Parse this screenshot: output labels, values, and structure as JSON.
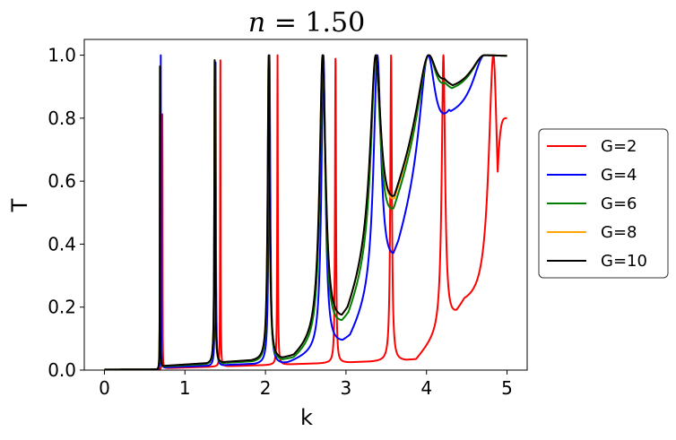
{
  "chart_data": {
    "type": "line",
    "title": "n = 1.50",
    "title_math": {
      "var": "n",
      "rest": " = 1.50"
    },
    "xlabel": "k",
    "ylabel": "T",
    "xlim": [
      -0.25,
      5.25
    ],
    "ylim": [
      0.0,
      1.05
    ],
    "xticks": [
      0,
      1,
      2,
      3,
      4,
      5
    ],
    "xtick_labels": [
      "0",
      "1",
      "2",
      "3",
      "4",
      "5"
    ],
    "yticks": [
      0.0,
      0.2,
      0.4,
      0.6,
      0.8,
      1.0
    ],
    "ytick_labels": [
      "0.0",
      "0.2",
      "0.4",
      "0.6",
      "0.8",
      "1.0"
    ],
    "grid": false,
    "legend_position": "center-right, outside axes",
    "series": [
      {
        "name": "G=2",
        "color": "#ff0000",
        "peaks": [
          {
            "k": 0.72,
            "w": 0.0016
          },
          {
            "k": 1.44,
            "w": 0.003
          },
          {
            "k": 2.15,
            "w": 0.0045
          },
          {
            "k": 2.87,
            "w": 0.007
          },
          {
            "k": 3.56,
            "w": 0.012
          },
          {
            "k": 4.21,
            "w": 0.025
          },
          {
            "k": 4.83,
            "w": 0.07
          }
        ],
        "minima": [
          {
            "k": 3.87,
            "y": 0.03
          },
          {
            "k": 4.47,
            "y": 0.2
          }
        ],
        "end": [
          5.0,
          0.8
        ]
      },
      {
        "name": "G=4",
        "color": "#0000ff",
        "peaks": [
          {
            "k": 0.7,
            "w": 0.002
          },
          {
            "k": 1.38,
            "w": 0.005
          },
          {
            "k": 2.05,
            "w": 0.012
          },
          {
            "k": 2.72,
            "w": 0.03
          },
          {
            "k": 3.39,
            "w": 0.055
          },
          {
            "k": 4.02,
            "w": 0.12
          },
          {
            "k": 4.72,
            "w": 0.18
          }
        ],
        "minima": [
          {
            "k": 2.27,
            "y": 0.02
          },
          {
            "k": 3.05,
            "y": 0.09
          },
          {
            "k": 3.65,
            "y": 0.35
          },
          {
            "k": 4.28,
            "y": 0.79
          }
        ],
        "end": [
          5.0,
          1.0
        ]
      },
      {
        "name": "G=6",
        "color": "#008000",
        "peaks": [
          {
            "k": 0.69,
            "w": 0.002
          },
          {
            "k": 1.37,
            "w": 0.006
          },
          {
            "k": 2.04,
            "w": 0.014
          },
          {
            "k": 2.71,
            "w": 0.04
          },
          {
            "k": 3.37,
            "w": 0.07
          },
          {
            "k": 4.03,
            "w": 0.14
          },
          {
            "k": 4.72,
            "w": 0.2
          }
        ],
        "minima": [
          {
            "k": 2.35,
            "y": 0.03
          },
          {
            "k": 3.03,
            "y": 0.15
          },
          {
            "k": 3.6,
            "y": 0.47
          },
          {
            "k": 4.23,
            "y": 0.87
          }
        ],
        "end": [
          5.0,
          1.0
        ]
      },
      {
        "name": "G=8",
        "color": "#ffa500",
        "peaks": [
          {
            "k": 0.69,
            "w": 0.002
          },
          {
            "k": 1.37,
            "w": 0.006
          },
          {
            "k": 2.04,
            "w": 0.015
          },
          {
            "k": 2.71,
            "w": 0.045
          },
          {
            "k": 3.37,
            "w": 0.08
          },
          {
            "k": 4.03,
            "w": 0.15
          },
          {
            "k": 4.72,
            "w": 0.2
          }
        ],
        "minima": [
          {
            "k": 2.35,
            "y": 0.035
          },
          {
            "k": 3.02,
            "y": 0.16
          },
          {
            "k": 3.6,
            "y": 0.49
          },
          {
            "k": 4.22,
            "y": 0.88
          }
        ],
        "end": [
          5.0,
          1.0
        ]
      },
      {
        "name": "G=10",
        "color": "#000000",
        "peaks": [
          {
            "k": 0.69,
            "w": 0.002
          },
          {
            "k": 1.37,
            "w": 0.006
          },
          {
            "k": 2.04,
            "w": 0.015
          },
          {
            "k": 2.71,
            "w": 0.045
          },
          {
            "k": 3.37,
            "w": 0.08
          },
          {
            "k": 4.03,
            "w": 0.15
          },
          {
            "k": 4.72,
            "w": 0.2
          }
        ],
        "minima": [
          {
            "k": 2.35,
            "y": 0.035
          },
          {
            "k": 3.02,
            "y": 0.16
          },
          {
            "k": 3.6,
            "y": 0.5
          },
          {
            "k": 4.22,
            "y": 0.88
          }
        ],
        "end": [
          5.0,
          1.0
        ]
      }
    ]
  }
}
